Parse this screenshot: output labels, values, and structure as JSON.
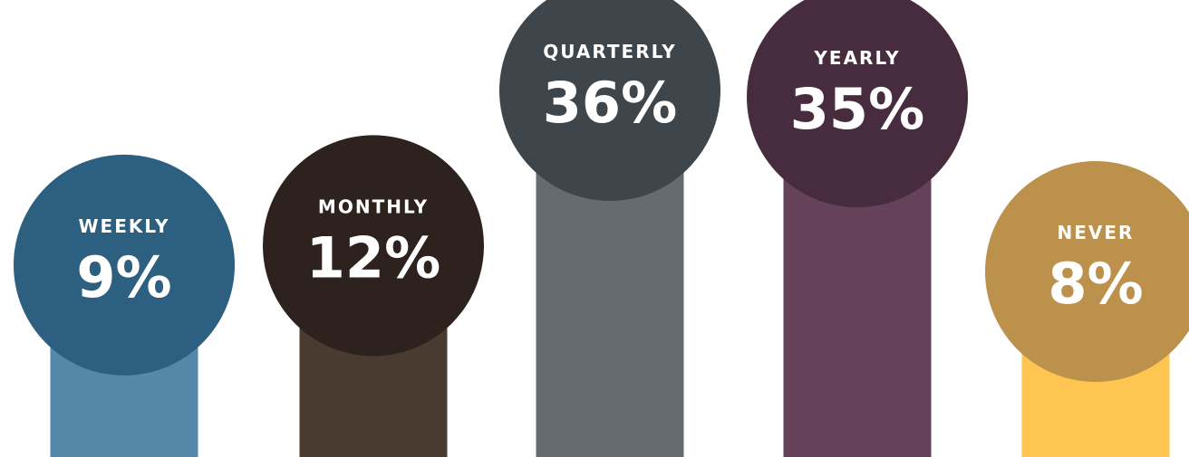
{
  "chart_data": {
    "type": "bar",
    "categories": [
      "WEEKLY",
      "MONTHLY",
      "QUARTERLY",
      "YEARLY",
      "NEVER"
    ],
    "values": [
      9,
      12,
      36,
      35,
      8
    ],
    "value_labels": [
      "9%",
      "12%",
      "36%",
      "35%",
      "8%"
    ],
    "unit": "%",
    "ylim": [
      0,
      36
    ],
    "grid": false,
    "legend": "none",
    "colors": {
      "stems": [
        "#5587a8",
        "#4a3b31",
        "#656b6e",
        "#654259",
        "#fec550"
      ],
      "circles": [
        "#2c5f80",
        "#2d221d",
        "#3e454b",
        "#472c3f",
        "#bc914b"
      ]
    }
  }
}
